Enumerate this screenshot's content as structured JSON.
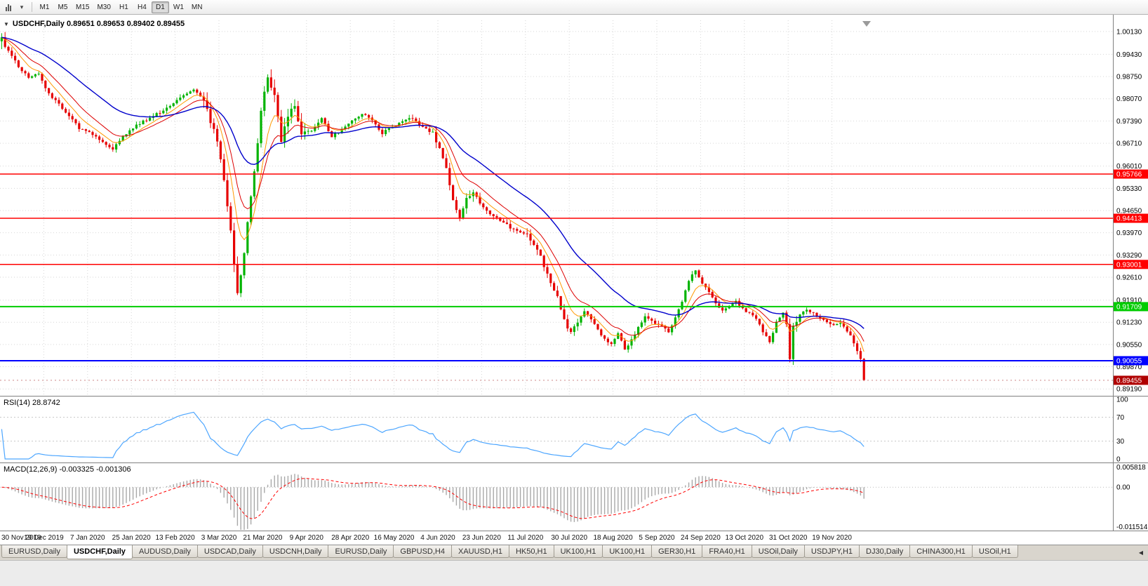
{
  "icons": {
    "dropdown_caret": "▾",
    "collapse_arrow": "▼",
    "tab_scroll_left": "◀"
  },
  "toolbar": {
    "timeframes": [
      "M1",
      "M5",
      "M15",
      "M30",
      "H1",
      "H4",
      "D1",
      "W1",
      "MN"
    ],
    "active_timeframe": "D1"
  },
  "chart": {
    "title": "USDCHF,Daily 0.89651 0.89653 0.89402 0.89455",
    "symbol": "USDCHF",
    "period": "Daily",
    "ohlc": {
      "open": "0.89651",
      "high": "0.89653",
      "low": "0.89402",
      "close": "0.89455"
    },
    "current_price": "0.89455",
    "price_axis_labels": [
      "1.00130",
      "0.99430",
      "0.98750",
      "0.98070",
      "0.97390",
      "0.96710",
      "0.96010",
      "0.95330",
      "0.94650",
      "0.93970",
      "0.93290",
      "0.92610",
      "0.91910",
      "0.91230",
      "0.90550",
      "0.89870",
      "0.89190"
    ],
    "date_labels": [
      "30 Nov 2019",
      "19 Dec 2019",
      "7 Jan 2020",
      "25 Jan 2020",
      "13 Feb 2020",
      "3 Mar 2020",
      "21 Mar 2020",
      "9 Apr 2020",
      "28 Apr 2020",
      "16 May 2020",
      "4 Jun 2020",
      "23 Jun 2020",
      "11 Jul 2020",
      "30 Jul 2020",
      "18 Aug 2020",
      "5 Sep 2020",
      "24 Sep 2020",
      "13 Oct 2020",
      "31 Oct 2020",
      "19 Nov 2020"
    ]
  },
  "rsi": {
    "label": "RSI(14) 28.8742",
    "value": 28.8742,
    "scale_labels": [
      "100",
      "70",
      "30",
      "0"
    ],
    "level_lines": [
      70,
      30
    ]
  },
  "macd": {
    "label": "MACD(12,26,9) -0.003325 -0.001306",
    "macd_value": -0.003325,
    "signal_value": -0.001306,
    "scale_top": "0.005818",
    "scale_mid": "0.00",
    "scale_bottom": "-0.011514"
  },
  "tabs": {
    "active_index": 1,
    "items": [
      "EURUSD,Daily",
      "USDCHF,Daily",
      "AUDUSD,Daily",
      "USDCAD,Daily",
      "USDCNH,Daily",
      "EURUSD,Daily",
      "GBPUSD,H4",
      "XAUUSD,H1",
      "HK50,H1",
      "UK100,H1",
      "UK100,H1",
      "GER30,H1",
      "FRA40,H1",
      "USOil,Daily",
      "USDJPY,H1",
      "DJ30,Daily",
      "CHINA300,H1",
      "USOil,H1"
    ]
  },
  "colors": {
    "up_candle": "#00b300",
    "down_candle": "#e60000",
    "ma_fast": "#ff9900",
    "ma_mid": "#dd0000",
    "ma_slow": "#0000cc",
    "rsi_line": "#4da6ff",
    "macd_hist": "#a8a8a8",
    "macd_signal": "#ff0000",
    "grid": "#d6d6d6",
    "separator": "#808080",
    "current_price_badge": "#b00000"
  },
  "chart_data": {
    "type": "candlestick",
    "symbol": "USDCHF",
    "timeframe": "Daily",
    "num_candles": 257,
    "price_range": {
      "top": 1.0047,
      "bottom": 0.8898
    },
    "last_ohlc": {
      "open": 0.89651,
      "high": 0.89653,
      "low": 0.89402,
      "close": 0.89455
    },
    "horizontal_levels": [
      {
        "price": 0.95766,
        "label": "0.95766",
        "color": "#ff0000",
        "width": 1.5
      },
      {
        "price": 0.94413,
        "label": "0.94413",
        "color": "#ff0000",
        "width": 1.5
      },
      {
        "price": 0.93001,
        "label": "0.93001",
        "color": "#ff0000",
        "width": 1.5
      },
      {
        "price": 0.91709,
        "label": "0.91709",
        "color": "#00cc00",
        "width": 2
      },
      {
        "price": 0.90055,
        "label": "0.90055",
        "color": "#0000ff",
        "width": 2
      }
    ],
    "close_anchors": [
      [
        0,
        0.9995
      ],
      [
        2,
        0.9952
      ],
      [
        5,
        0.9905
      ],
      [
        8,
        0.9872
      ],
      [
        11,
        0.9885
      ],
      [
        14,
        0.982
      ],
      [
        17,
        0.9792
      ],
      [
        20,
        0.9755
      ],
      [
        23,
        0.9718
      ],
      [
        27,
        0.9698
      ],
      [
        30,
        0.9672
      ],
      [
        33,
        0.9655
      ],
      [
        36,
        0.9692
      ],
      [
        40,
        0.9726
      ],
      [
        44,
        0.9748
      ],
      [
        48,
        0.9772
      ],
      [
        53,
        0.9812
      ],
      [
        57,
        0.9838
      ],
      [
        60,
        0.9802
      ],
      [
        62,
        0.9738
      ],
      [
        64,
        0.9675
      ],
      [
        66,
        0.9562
      ],
      [
        68,
        0.94
      ],
      [
        70,
        0.9208
      ],
      [
        71,
        0.9262
      ],
      [
        73,
        0.9425
      ],
      [
        75,
        0.9585
      ],
      [
        77,
        0.9762
      ],
      [
        79,
        0.9878
      ],
      [
        81,
        0.9815
      ],
      [
        83,
        0.9682
      ],
      [
        85,
        0.9748
      ],
      [
        87,
        0.9788
      ],
      [
        89,
        0.9702
      ],
      [
        92,
        0.9708
      ],
      [
        95,
        0.9745
      ],
      [
        98,
        0.9692
      ],
      [
        101,
        0.9712
      ],
      [
        104,
        0.9742
      ],
      [
        107,
        0.976
      ],
      [
        110,
        0.9742
      ],
      [
        113,
        0.9702
      ],
      [
        116,
        0.9722
      ],
      [
        119,
        0.974
      ],
      [
        122,
        0.9748
      ],
      [
        125,
        0.972
      ],
      [
        128,
        0.97
      ],
      [
        130,
        0.9658
      ],
      [
        132,
        0.96
      ],
      [
        134,
        0.9492
      ],
      [
        136,
        0.9448
      ],
      [
        138,
        0.9502
      ],
      [
        140,
        0.9522
      ],
      [
        142,
        0.9492
      ],
      [
        144,
        0.9465
      ],
      [
        147,
        0.9442
      ],
      [
        150,
        0.942
      ],
      [
        153,
        0.94
      ],
      [
        156,
        0.939
      ],
      [
        159,
        0.9348
      ],
      [
        162,
        0.9272
      ],
      [
        165,
        0.9198
      ],
      [
        167,
        0.9132
      ],
      [
        169,
        0.9088
      ],
      [
        171,
        0.9122
      ],
      [
        173,
        0.9155
      ],
      [
        175,
        0.9132
      ],
      [
        177,
        0.9098
      ],
      [
        179,
        0.9072
      ],
      [
        181,
        0.9058
      ],
      [
        183,
        0.9088
      ],
      [
        185,
        0.9042
      ],
      [
        187,
        0.9068
      ],
      [
        189,
        0.9108
      ],
      [
        191,
        0.9138
      ],
      [
        194,
        0.9122
      ],
      [
        196,
        0.911
      ],
      [
        198,
        0.9094
      ],
      [
        200,
        0.9138
      ],
      [
        202,
        0.9188
      ],
      [
        204,
        0.9248
      ],
      [
        206,
        0.9285
      ],
      [
        208,
        0.9242
      ],
      [
        210,
        0.9218
      ],
      [
        212,
        0.9182
      ],
      [
        214,
        0.9158
      ],
      [
        216,
        0.9174
      ],
      [
        218,
        0.919
      ],
      [
        220,
        0.9164
      ],
      [
        222,
        0.915
      ],
      [
        224,
        0.9136
      ],
      [
        226,
        0.9096
      ],
      [
        228,
        0.9066
      ],
      [
        230,
        0.9122
      ],
      [
        232,
        0.9158
      ],
      [
        233,
        0.9122
      ],
      [
        234,
        0.9006
      ],
      [
        235,
        0.9108
      ],
      [
        237,
        0.915
      ],
      [
        239,
        0.9164
      ],
      [
        241,
        0.915
      ],
      [
        243,
        0.9134
      ],
      [
        245,
        0.9124
      ],
      [
        247,
        0.9114
      ],
      [
        249,
        0.912
      ],
      [
        251,
        0.9096
      ],
      [
        253,
        0.9062
      ],
      [
        255,
        0.9012
      ],
      [
        256,
        0.8946
      ]
    ],
    "base_wick": 0.0011,
    "volatility_zones": [
      {
        "from": 0,
        "to": 2,
        "wick": 0.0028
      },
      {
        "from": 60,
        "to": 90,
        "wick": 0.0026
      },
      {
        "from": 128,
        "to": 142,
        "wick": 0.0018
      },
      {
        "from": 156,
        "to": 172,
        "wick": 0.0018
      },
      {
        "from": 232,
        "to": 236,
        "wick": 0.002
      }
    ],
    "indicators": [
      {
        "name": "MA",
        "period": 34,
        "color": "#0000cc"
      },
      {
        "name": "MA",
        "period": 13,
        "color": "#dd0000"
      },
      {
        "name": "MA",
        "period": 7,
        "color": "#ff9900"
      },
      {
        "name": "RSI",
        "period": 14,
        "value": 28.8742,
        "levels": [
          70,
          30
        ]
      },
      {
        "name": "MACD",
        "params": "12,26,9",
        "macd": -0.003325,
        "signal": -0.001306,
        "scale_max": 0.005818,
        "scale_min": -0.011514
      }
    ]
  }
}
